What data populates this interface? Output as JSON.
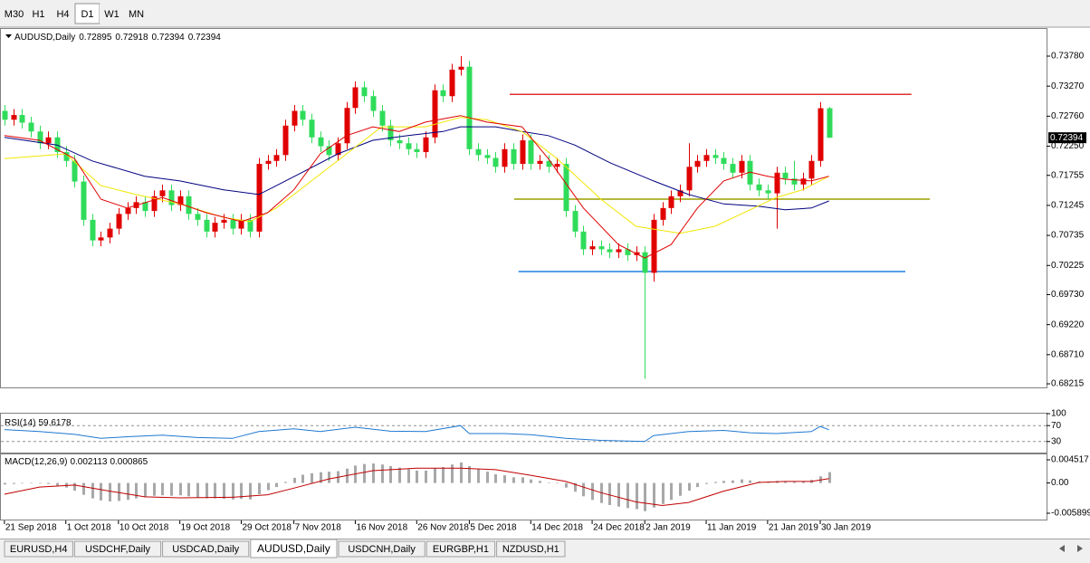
{
  "timeframes": [
    "M30",
    "H1",
    "H4",
    "D1",
    "W1",
    "MN"
  ],
  "active_timeframe_index": 3,
  "tabs": [
    "EURUSD,H4",
    "USDCHF,Daily",
    "USDCAD,Daily",
    "AUDUSD,Daily",
    "USDCNH,Daily",
    "EURGBP,H1",
    "NZDUSD,H1"
  ],
  "active_tab_index": 3,
  "chart_data": [
    {
      "type": "candlestick",
      "title": "AUDUSD,Daily",
      "up_color": "#e00000",
      "down_color": "#2fdc5a",
      "open": [
        0.7285,
        0.727,
        0.7278,
        0.7265,
        0.725,
        0.723,
        0.724,
        0.7215,
        0.72,
        0.7165,
        0.71,
        0.7065,
        0.707,
        0.7085,
        0.711,
        0.712,
        0.713,
        0.7115,
        0.714,
        0.715,
        0.7125,
        0.714,
        0.711,
        0.71,
        0.708,
        0.7095,
        0.71,
        0.7085,
        0.71,
        0.708,
        0.7195,
        0.72,
        0.721,
        0.726,
        0.7285,
        0.727,
        0.724,
        0.7225,
        0.721,
        0.723,
        0.729,
        0.7325,
        0.731,
        0.7285,
        0.726,
        0.7235,
        0.723,
        0.722,
        0.7215,
        0.724,
        0.732,
        0.731,
        0.7355,
        0.736,
        0.722,
        0.721,
        0.7205,
        0.719,
        0.722,
        0.7195,
        0.7235,
        0.7195,
        0.72,
        0.719,
        0.7195,
        0.7115,
        0.708,
        0.705,
        0.7055,
        0.705,
        0.7045,
        0.705,
        0.704,
        0.7045,
        0.701,
        0.71,
        0.712,
        0.714,
        0.715,
        0.719,
        0.72,
        0.721,
        0.7205,
        0.7195,
        0.718,
        0.72,
        0.716,
        0.715,
        0.7145,
        0.718,
        0.717,
        0.716,
        0.717,
        0.72,
        0.72895
      ],
      "high": [
        0.7295,
        0.7288,
        0.7288,
        0.7275,
        0.726,
        0.725,
        0.725,
        0.7225,
        0.721,
        0.7175,
        0.711,
        0.708,
        0.7095,
        0.712,
        0.713,
        0.714,
        0.714,
        0.715,
        0.716,
        0.716,
        0.715,
        0.715,
        0.712,
        0.711,
        0.7105,
        0.711,
        0.711,
        0.711,
        0.711,
        0.7205,
        0.721,
        0.722,
        0.727,
        0.7295,
        0.7295,
        0.728,
        0.725,
        0.7235,
        0.724,
        0.73,
        0.7335,
        0.7335,
        0.732,
        0.7295,
        0.727,
        0.7245,
        0.724,
        0.723,
        0.725,
        0.733,
        0.733,
        0.7365,
        0.7378,
        0.737,
        0.723,
        0.722,
        0.7215,
        0.723,
        0.723,
        0.7245,
        0.7245,
        0.721,
        0.721,
        0.7205,
        0.7205,
        0.7125,
        0.709,
        0.7065,
        0.7065,
        0.706,
        0.706,
        0.706,
        0.7055,
        0.7055,
        0.711,
        0.713,
        0.715,
        0.716,
        0.723,
        0.721,
        0.722,
        0.722,
        0.7215,
        0.7205,
        0.721,
        0.721,
        0.717,
        0.716,
        0.719,
        0.719,
        0.72,
        0.718,
        0.721,
        0.73,
        0.72918
      ],
      "low": [
        0.726,
        0.726,
        0.7255,
        0.724,
        0.722,
        0.722,
        0.7205,
        0.719,
        0.7155,
        0.709,
        0.7055,
        0.7055,
        0.706,
        0.7075,
        0.71,
        0.711,
        0.7105,
        0.7105,
        0.713,
        0.7115,
        0.7115,
        0.71,
        0.709,
        0.707,
        0.707,
        0.7085,
        0.7075,
        0.7075,
        0.707,
        0.707,
        0.7185,
        0.719,
        0.72,
        0.725,
        0.726,
        0.723,
        0.7215,
        0.72,
        0.72,
        0.722,
        0.728,
        0.73,
        0.7275,
        0.725,
        0.7225,
        0.722,
        0.721,
        0.7205,
        0.7205,
        0.723,
        0.73,
        0.73,
        0.7345,
        0.721,
        0.72,
        0.7195,
        0.718,
        0.718,
        0.7185,
        0.7185,
        0.7185,
        0.7185,
        0.718,
        0.718,
        0.7105,
        0.707,
        0.704,
        0.704,
        0.704,
        0.7035,
        0.7035,
        0.703,
        0.703,
        0.683,
        0.6995,
        0.709,
        0.711,
        0.713,
        0.714,
        0.718,
        0.719,
        0.7195,
        0.7185,
        0.717,
        0.717,
        0.715,
        0.714,
        0.7135,
        0.7085,
        0.716,
        0.715,
        0.715,
        0.716,
        0.719,
        0.72394
      ],
      "close": [
        0.727,
        0.7278,
        0.7265,
        0.725,
        0.723,
        0.724,
        0.7215,
        0.72,
        0.7165,
        0.71,
        0.7065,
        0.707,
        0.7085,
        0.711,
        0.712,
        0.713,
        0.7115,
        0.714,
        0.715,
        0.7125,
        0.714,
        0.711,
        0.71,
        0.708,
        0.7095,
        0.71,
        0.7085,
        0.71,
        0.708,
        0.7195,
        0.72,
        0.721,
        0.726,
        0.7285,
        0.727,
        0.724,
        0.7225,
        0.721,
        0.723,
        0.729,
        0.7325,
        0.731,
        0.7285,
        0.726,
        0.7235,
        0.723,
        0.722,
        0.7215,
        0.724,
        0.732,
        0.731,
        0.7355,
        0.736,
        0.722,
        0.721,
        0.7205,
        0.719,
        0.722,
        0.7195,
        0.7235,
        0.7195,
        0.72,
        0.719,
        0.7195,
        0.7115,
        0.708,
        0.705,
        0.7055,
        0.705,
        0.7045,
        0.705,
        0.704,
        0.7045,
        0.701,
        0.71,
        0.712,
        0.714,
        0.715,
        0.719,
        0.72,
        0.721,
        0.7205,
        0.7195,
        0.718,
        0.72,
        0.716,
        0.715,
        0.7145,
        0.718,
        0.717,
        0.716,
        0.717,
        0.72,
        0.72895,
        0.72394
      ],
      "xlim": [
        -0.4,
        118.8
      ],
      "ylim": [
        0.68154,
        0.74241
      ],
      "yticks": [
        {
          "value": 0.7378,
          "label": "0.73780"
        },
        {
          "value": 0.7327,
          "label": "0.73270"
        },
        {
          "value": 0.7276,
          "label": "0.72760"
        },
        {
          "value": 0.7225,
          "label": "0.72250"
        },
        0.71755,
        0.71245,
        0.70735,
        0.70225,
        {
          "value": 0.6973,
          "label": "0.69730"
        },
        {
          "value": 0.6922,
          "label": "0.69220"
        },
        {
          "value": 0.6871,
          "label": "0.68710"
        },
        0.68215
      ],
      "xticks": [
        {
          "value": 0,
          "label": "21 Sep 2018"
        },
        {
          "value": 7,
          "label": "1 Oct 2018"
        },
        {
          "value": 13,
          "label": "10 Oct 2018"
        },
        {
          "value": 20,
          "label": "19 Oct 2018"
        },
        {
          "value": 27,
          "label": "29 Oct 2018"
        },
        {
          "value": 33,
          "label": "7 Nov 2018"
        },
        {
          "value": 40,
          "label": "16 Nov 2018"
        },
        {
          "value": 47,
          "label": "26 Nov 2018"
        },
        {
          "value": 53,
          "label": "5 Dec 2018"
        },
        {
          "value": 60,
          "label": "14 Dec 2018"
        },
        {
          "value": 67,
          "label": "24 Dec 2018"
        },
        {
          "value": 73,
          "label": "2 Jan 2019"
        },
        {
          "value": 80,
          "label": "11 Jan 2019"
        },
        {
          "value": 87,
          "label": "21 Jan 2019"
        },
        {
          "value": 93,
          "label": "30 Jan 2019"
        }
      ],
      "series": [
        {
          "color": "#000080",
          "x": [
            0,
            6,
            10,
            16,
            20,
            25,
            29,
            31,
            34,
            38,
            42,
            46,
            50,
            52,
            56,
            59,
            62,
            65,
            69,
            74,
            78,
            82,
            86,
            89,
            92,
            94
          ],
          "values": [
            0.724,
            0.7227,
            0.72,
            0.7174,
            0.7166,
            0.7151,
            0.7143,
            0.7158,
            0.7181,
            0.7212,
            0.7235,
            0.7243,
            0.725,
            0.7258,
            0.7258,
            0.725,
            0.7243,
            0.7227,
            0.7197,
            0.7166,
            0.7143,
            0.7127,
            0.7123,
            0.7117,
            0.712,
            0.7132
          ]
        },
        {
          "color": "#f2e600",
          "x": [
            0,
            7,
            11,
            15,
            20,
            25,
            28,
            31,
            35,
            39,
            43,
            48,
            52,
            55,
            59,
            63,
            68,
            72,
            77,
            81,
            85,
            88,
            91,
            94
          ],
          "values": [
            0.7204,
            0.7212,
            0.7158,
            0.7143,
            0.7127,
            0.7104,
            0.7097,
            0.712,
            0.7166,
            0.7212,
            0.7258,
            0.7258,
            0.7274,
            0.727,
            0.725,
            0.7204,
            0.7135,
            0.7089,
            0.7077,
            0.7089,
            0.7117,
            0.7138,
            0.7151,
            0.7174
          ]
        },
        {
          "color": "#e00000",
          "x": [
            0,
            4,
            8,
            11,
            14,
            18,
            23,
            27,
            30,
            33,
            36,
            39,
            42,
            45,
            48,
            52,
            55,
            59,
            62,
            66,
            70,
            73,
            76,
            79,
            82,
            85,
            87,
            89,
            92,
            94
          ],
          "values": [
            0.7243,
            0.7235,
            0.7204,
            0.7135,
            0.712,
            0.7138,
            0.7112,
            0.7097,
            0.7112,
            0.7151,
            0.7212,
            0.7243,
            0.7258,
            0.725,
            0.7266,
            0.7277,
            0.7266,
            0.7258,
            0.7204,
            0.712,
            0.7058,
            0.7035,
            0.7058,
            0.712,
            0.7166,
            0.7181,
            0.7174,
            0.7169,
            0.7166,
            0.7174
          ]
        }
      ],
      "hlines": [
        {
          "value": 0.7313,
          "color": "#e03030",
          "from": 57.6,
          "to": 103.4
        },
        {
          "value": 0.71351,
          "color": "#9aa000",
          "from": 58.1,
          "to": 105.5
        },
        {
          "value": 0.70121,
          "color": "#2080e0",
          "from": 58.6,
          "to": 102.7
        }
      ]
    },
    {
      "type": "line",
      "title": "RSI(14)",
      "color": "#1e78d2",
      "x": [
        0,
        4,
        8,
        11,
        14,
        18,
        22,
        26,
        29,
        33,
        36,
        40,
        44,
        48,
        52,
        53,
        57,
        60,
        64,
        68,
        73,
        74,
        78,
        82,
        85,
        88,
        92,
        93,
        94
      ],
      "values": [
        60,
        55,
        48,
        38,
        42,
        46,
        40,
        38,
        55,
        62,
        55,
        66,
        56,
        55,
        70,
        50,
        50,
        47,
        38,
        33,
        30,
        45,
        55,
        58,
        52,
        50,
        55,
        68,
        59.6178
      ],
      "ylim": [
        0,
        100
      ],
      "yticks": [
        100,
        70,
        30
      ],
      "levels": [
        70,
        30
      ]
    },
    {
      "type": "macd",
      "title": "MACD(12,26,9)",
      "hist_color": "#a8a8a8",
      "signal_color": "#c00000",
      "values": [
        -0.0003,
        -0.0002,
        -0.0001,
        0,
        -0.0001,
        -0.0002,
        -0.0005,
        -0.0009,
        -0.0015,
        -0.0023,
        -0.003,
        -0.0034,
        -0.0036,
        -0.0035,
        -0.0033,
        -0.003,
        -0.0028,
        -0.0025,
        -0.0024,
        -0.0025,
        -0.0024,
        -0.0026,
        -0.0028,
        -0.003,
        -0.003,
        -0.0031,
        -0.0032,
        -0.0031,
        -0.0032,
        -0.0022,
        -0.0014,
        -0.0008,
        0.0002,
        0.001,
        0.0016,
        0.0019,
        0.0021,
        0.0022,
        0.0023,
        0.0028,
        0.0034,
        0.0037,
        0.0038,
        0.0036,
        0.0033,
        0.003,
        0.0027,
        0.0024,
        0.0024,
        0.0029,
        0.0031,
        0.0036,
        0.004,
        0.0033,
        0.0027,
        0.0022,
        0.0017,
        0.0015,
        0.0011,
        0.0011,
        0.0007,
        0.0004,
        0.0001,
        -0.0001,
        -0.0009,
        -0.0017,
        -0.0026,
        -0.0033,
        -0.0039,
        -0.0043,
        -0.0046,
        -0.0049,
        -0.0051,
        -0.0055,
        -0.0048,
        -0.0041,
        -0.0033,
        -0.0025,
        -0.0015,
        -0.0008,
        -0.0002,
        0.0002,
        0.0004,
        0.0005,
        0.0007,
        0.0005,
        0.0003,
        0.0002,
        0.0004,
        0.0003,
        0.0002,
        0.0003,
        0.0006,
        0.0013,
        0.002113
      ],
      "signal_x": [
        0,
        4,
        8,
        12,
        16,
        20,
        26,
        30,
        33,
        37,
        42,
        47,
        52,
        56,
        60,
        64,
        68,
        72,
        75,
        78,
        82,
        86,
        89,
        92,
        94
      ],
      "signal": [
        -0.0022,
        -0.0008,
        -0.0004,
        -0.0016,
        -0.0027,
        -0.0029,
        -0.0028,
        -0.0023,
        -0.001,
        0.0008,
        0.0024,
        0.0029,
        0.0029,
        0.0026,
        0.0015,
        0.0003,
        -0.0019,
        -0.0037,
        -0.0044,
        -0.0038,
        -0.0016,
        0.0001,
        0.0003,
        0.0003,
        0.000865
      ],
      "ylim": [
        -0.007311,
        0.005576
      ],
      "yticks": [
        0.004517,
        {
          "value": 0,
          "label": "0.00"
        },
        -0.005899
      ]
    }
  ]
}
